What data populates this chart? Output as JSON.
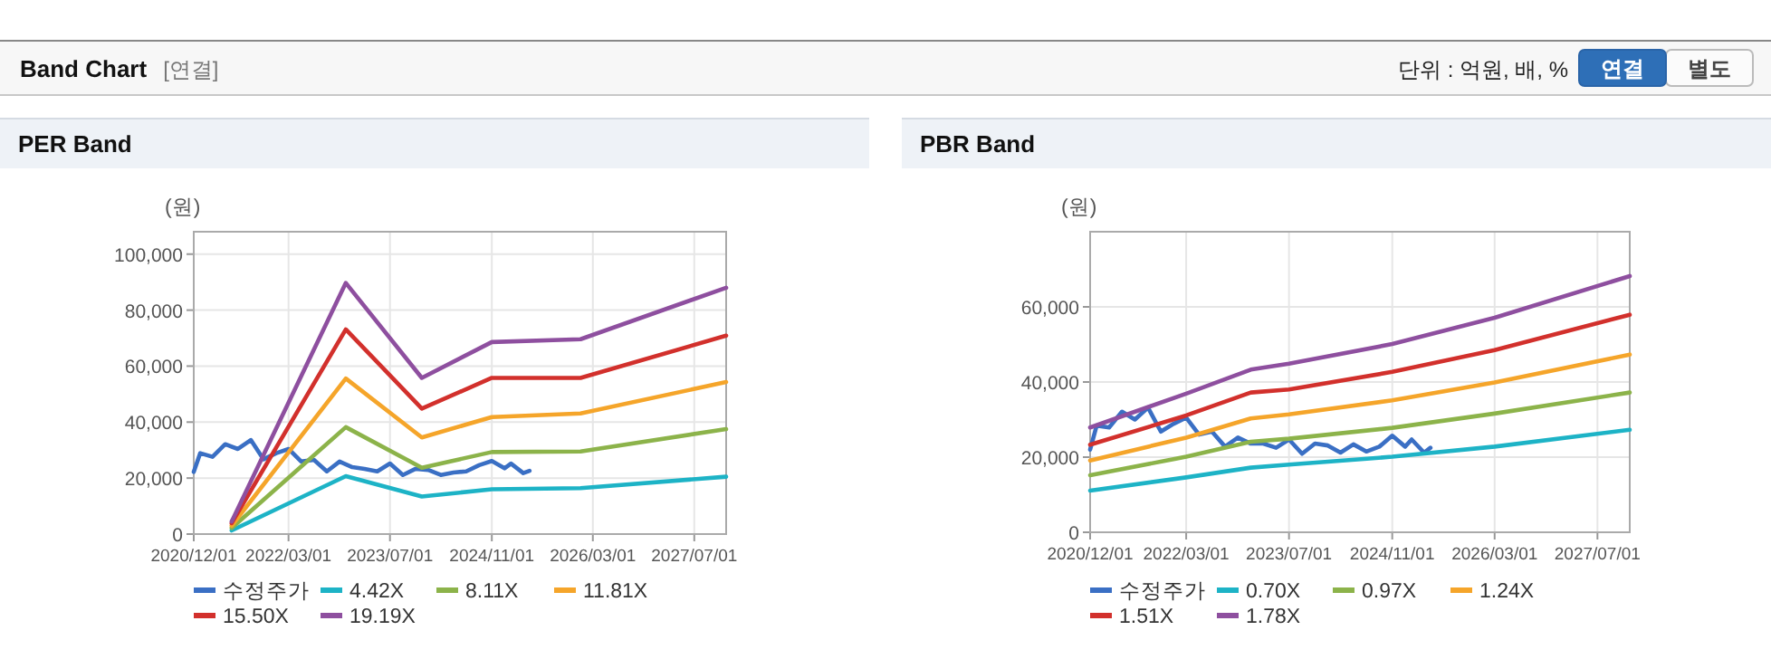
{
  "chart_data": [
    {
      "type": "other",
      "title": "Band Chart",
      "subtitle": "[연결]",
      "annotations": [
        "단위 : 억원, 배, %",
        "연결",
        "별도"
      ]
    },
    {
      "type": "line",
      "title": "PER Band",
      "ylabel": "(원)",
      "grid": true,
      "legend": "bottom",
      "line_style": "solid",
      "xlim": [
        "2020-12-01",
        "2027-12-01"
      ],
      "xticks": [
        {
          "value": "2020-12-01",
          "label": "2020/12/01"
        },
        {
          "value": "2022-03-01",
          "label": "2022/03/01"
        },
        {
          "value": "2023-07-01",
          "label": "2023/07/01"
        },
        {
          "value": "2024-11-01",
          "label": "2024/11/01"
        },
        {
          "value": "2026-03-01",
          "label": "2026/03/01"
        },
        {
          "value": "2027-07-01",
          "label": "2027/07/01"
        }
      ],
      "ylim": [
        0,
        108000
      ],
      "yticks": [
        0,
        {
          "value": 20000,
          "label": "20,000"
        },
        {
          "value": 40000,
          "label": "40,000"
        },
        {
          "value": 60000,
          "label": "60,000"
        },
        {
          "value": 80000,
          "label": "80,000"
        },
        {
          "value": 100000,
          "label": "100,000"
        }
      ],
      "series": [
        {
          "name": "수정주가",
          "color": "#3a6fc4",
          "x": [
            "2020-12",
            "2021-01",
            "2021-03",
            "2021-05",
            "2021-07",
            "2021-09",
            "2021-11",
            "2022-01",
            "2022-03",
            "2022-05",
            "2022-07",
            "2022-09",
            "2022-11",
            "2023-01",
            "2023-03",
            "2023-05",
            "2023-07",
            "2023-09",
            "2023-11",
            "2024-01",
            "2024-03",
            "2024-05",
            "2024-07",
            "2024-09",
            "2024-11",
            "2025-01",
            "2025-02",
            "2025-04",
            "2025-05"
          ],
          "values": [
            22200,
            28900,
            27600,
            32100,
            30400,
            33600,
            26700,
            28900,
            30400,
            25900,
            26500,
            22400,
            25900,
            23900,
            23300,
            22400,
            25200,
            21100,
            23300,
            22900,
            21100,
            22000,
            22400,
            24600,
            26100,
            23500,
            25200,
            21800,
            22600
          ]
        },
        {
          "name": "4.42X",
          "color": "#1db3c6",
          "x": [
            "2021-06",
            "2022-12",
            "2023-12",
            "2024-11",
            "2026-01",
            "2027-12"
          ],
          "values": [
            1300,
            20700,
            13400,
            16000,
            16400,
            20500
          ]
        },
        {
          "name": "8.11X",
          "color": "#8cb34a",
          "x": [
            "2021-06",
            "2022-12",
            "2023-12",
            "2024-11",
            "2026-01",
            "2027-12"
          ],
          "values": [
            2200,
            38200,
            23700,
            29300,
            29500,
            37500
          ]
        },
        {
          "name": "11.81X",
          "color": "#f5a52a",
          "x": [
            "2021-06",
            "2022-12",
            "2023-12",
            "2024-11",
            "2026-01",
            "2027-12"
          ],
          "values": [
            3000,
            55600,
            34500,
            41800,
            43100,
            54300
          ]
        },
        {
          "name": "15.50X",
          "color": "#d2302c",
          "x": [
            "2021-06",
            "2022-12",
            "2023-12",
            "2024-11",
            "2026-01",
            "2027-12"
          ],
          "values": [
            3900,
            73100,
            44800,
            55800,
            55800,
            70900
          ]
        },
        {
          "name": "19.19X",
          "color": "#8e4f9f",
          "x": [
            "2021-06",
            "2022-12",
            "2023-12",
            "2024-11",
            "2026-01",
            "2027-12"
          ],
          "values": [
            4500,
            89700,
            55800,
            68600,
            69600,
            88000
          ]
        }
      ]
    },
    {
      "type": "line",
      "title": "PBR Band",
      "ylabel": "(원)",
      "grid": true,
      "legend": "bottom",
      "line_style": "solid",
      "xlim": [
        "2020-12-01",
        "2027-12-01"
      ],
      "xticks": [
        {
          "value": "2020-12-01",
          "label": "2020/12/01"
        },
        {
          "value": "2022-03-01",
          "label": "2022/03/01"
        },
        {
          "value": "2023-07-01",
          "label": "2023/07/01"
        },
        {
          "value": "2024-11-01",
          "label": "2024/11/01"
        },
        {
          "value": "2026-03-01",
          "label": "2026/03/01"
        },
        {
          "value": "2027-07-01",
          "label": "2027/07/01"
        }
      ],
      "ylim": [
        0,
        80000
      ],
      "yticks": [
        0,
        {
          "value": 20000,
          "label": "20,000"
        },
        {
          "value": 40000,
          "label": "40,000"
        },
        {
          "value": 60000,
          "label": "60,000"
        }
      ],
      "series": [
        {
          "name": "수정주가",
          "color": "#3a6fc4",
          "x": [
            "2020-12",
            "2021-01",
            "2021-03",
            "2021-05",
            "2021-07",
            "2021-09",
            "2021-11",
            "2022-01",
            "2022-03",
            "2022-05",
            "2022-07",
            "2022-09",
            "2022-11",
            "2023-01",
            "2023-03",
            "2023-05",
            "2023-07",
            "2023-09",
            "2023-11",
            "2024-01",
            "2024-03",
            "2024-05",
            "2024-07",
            "2024-09",
            "2024-11",
            "2025-01",
            "2025-02",
            "2025-04",
            "2025-05"
          ],
          "values": [
            22000,
            28400,
            27900,
            32100,
            30000,
            33200,
            26800,
            28900,
            30500,
            26000,
            26800,
            22800,
            25200,
            23600,
            23600,
            22500,
            24700,
            20900,
            23600,
            23100,
            21200,
            23400,
            21500,
            22800,
            25700,
            22800,
            24700,
            21200,
            22500
          ]
        },
        {
          "name": "0.70X",
          "color": "#1db3c6",
          "x": [
            "2020-12",
            "2022-03",
            "2023-01",
            "2023-07",
            "2024-11",
            "2026-03",
            "2027-12"
          ],
          "values": [
            11100,
            14600,
            17200,
            18000,
            20100,
            22800,
            27300
          ]
        },
        {
          "name": "0.97X",
          "color": "#8cb34a",
          "x": [
            "2020-12",
            "2022-03",
            "2023-01",
            "2023-07",
            "2024-11",
            "2026-03",
            "2027-12"
          ],
          "values": [
            15200,
            20100,
            24100,
            24900,
            27800,
            31600,
            37200
          ]
        },
        {
          "name": "1.24X",
          "color": "#f5a52a",
          "x": [
            "2020-12",
            "2022-03",
            "2023-01",
            "2023-07",
            "2024-11",
            "2026-03",
            "2027-12"
          ],
          "values": [
            19100,
            25200,
            30300,
            31400,
            35100,
            39900,
            47300
          ]
        },
        {
          "name": "1.51X",
          "color": "#d2302c",
          "x": [
            "2020-12",
            "2022-03",
            "2023-01",
            "2023-07",
            "2024-11",
            "2026-03",
            "2027-12"
          ],
          "values": [
            23300,
            31100,
            37200,
            38000,
            42700,
            48500,
            57900
          ]
        },
        {
          "name": "1.78X",
          "color": "#8e4f9f",
          "x": [
            "2020-12",
            "2022-03",
            "2023-01",
            "2023-07",
            "2024-11",
            "2026-03",
            "2027-12"
          ],
          "values": [
            27900,
            36900,
            43300,
            44900,
            50100,
            57100,
            68200
          ]
        }
      ]
    }
  ]
}
